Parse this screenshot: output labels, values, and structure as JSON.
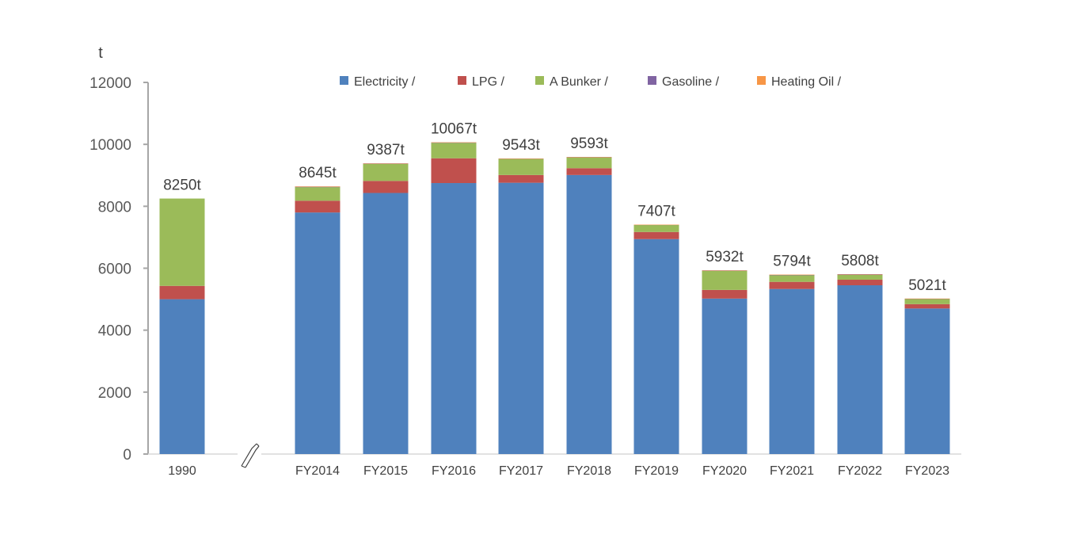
{
  "chart_data": {
    "type": "bar",
    "stacked": true,
    "unit": "t",
    "categories": [
      "1990",
      "FY2014",
      "FY2015",
      "FY2016",
      "FY2017",
      "FY2018",
      "FY2019",
      "FY2020",
      "FY2021",
      "FY2022",
      "FY2023"
    ],
    "series": [
      {
        "name": "Electricity /",
        "color": "#4f81bd",
        "values": [
          5000,
          7800,
          8430,
          8750,
          8760,
          9010,
          6940,
          5020,
          5330,
          5450,
          4700
        ]
      },
      {
        "name": "LPG /",
        "color": "#c0504d",
        "values": [
          430,
          380,
          390,
          800,
          250,
          220,
          230,
          280,
          230,
          180,
          140
        ]
      },
      {
        "name": "A Bunker /",
        "color": "#9bbb59",
        "values": [
          2820,
          440,
          550,
          500,
          520,
          350,
          230,
          620,
          220,
          160,
          170
        ]
      },
      {
        "name": "Gasoline /",
        "color": "#8064a2",
        "values": [
          0,
          10,
          10,
          10,
          10,
          8,
          5,
          5,
          5,
          5,
          5
        ]
      },
      {
        "name": "Heating Oil /",
        "color": "#f79646",
        "values": [
          0,
          15,
          7,
          7,
          3,
          5,
          2,
          7,
          9,
          13,
          6
        ]
      }
    ],
    "totals": [
      "8250t",
      "8645t",
      "9387t",
      "10067t",
      "9543t",
      "9593t",
      "7407t",
      "5932t",
      "5794t",
      "5808t",
      "5021t"
    ],
    "y_ticks": [
      "0",
      "2000",
      "4000",
      "6000",
      "8000",
      "10000",
      "12000"
    ],
    "ylim": [
      0,
      12000
    ],
    "axis_break_after": "1990",
    "legend_position": "top",
    "grid": false
  }
}
